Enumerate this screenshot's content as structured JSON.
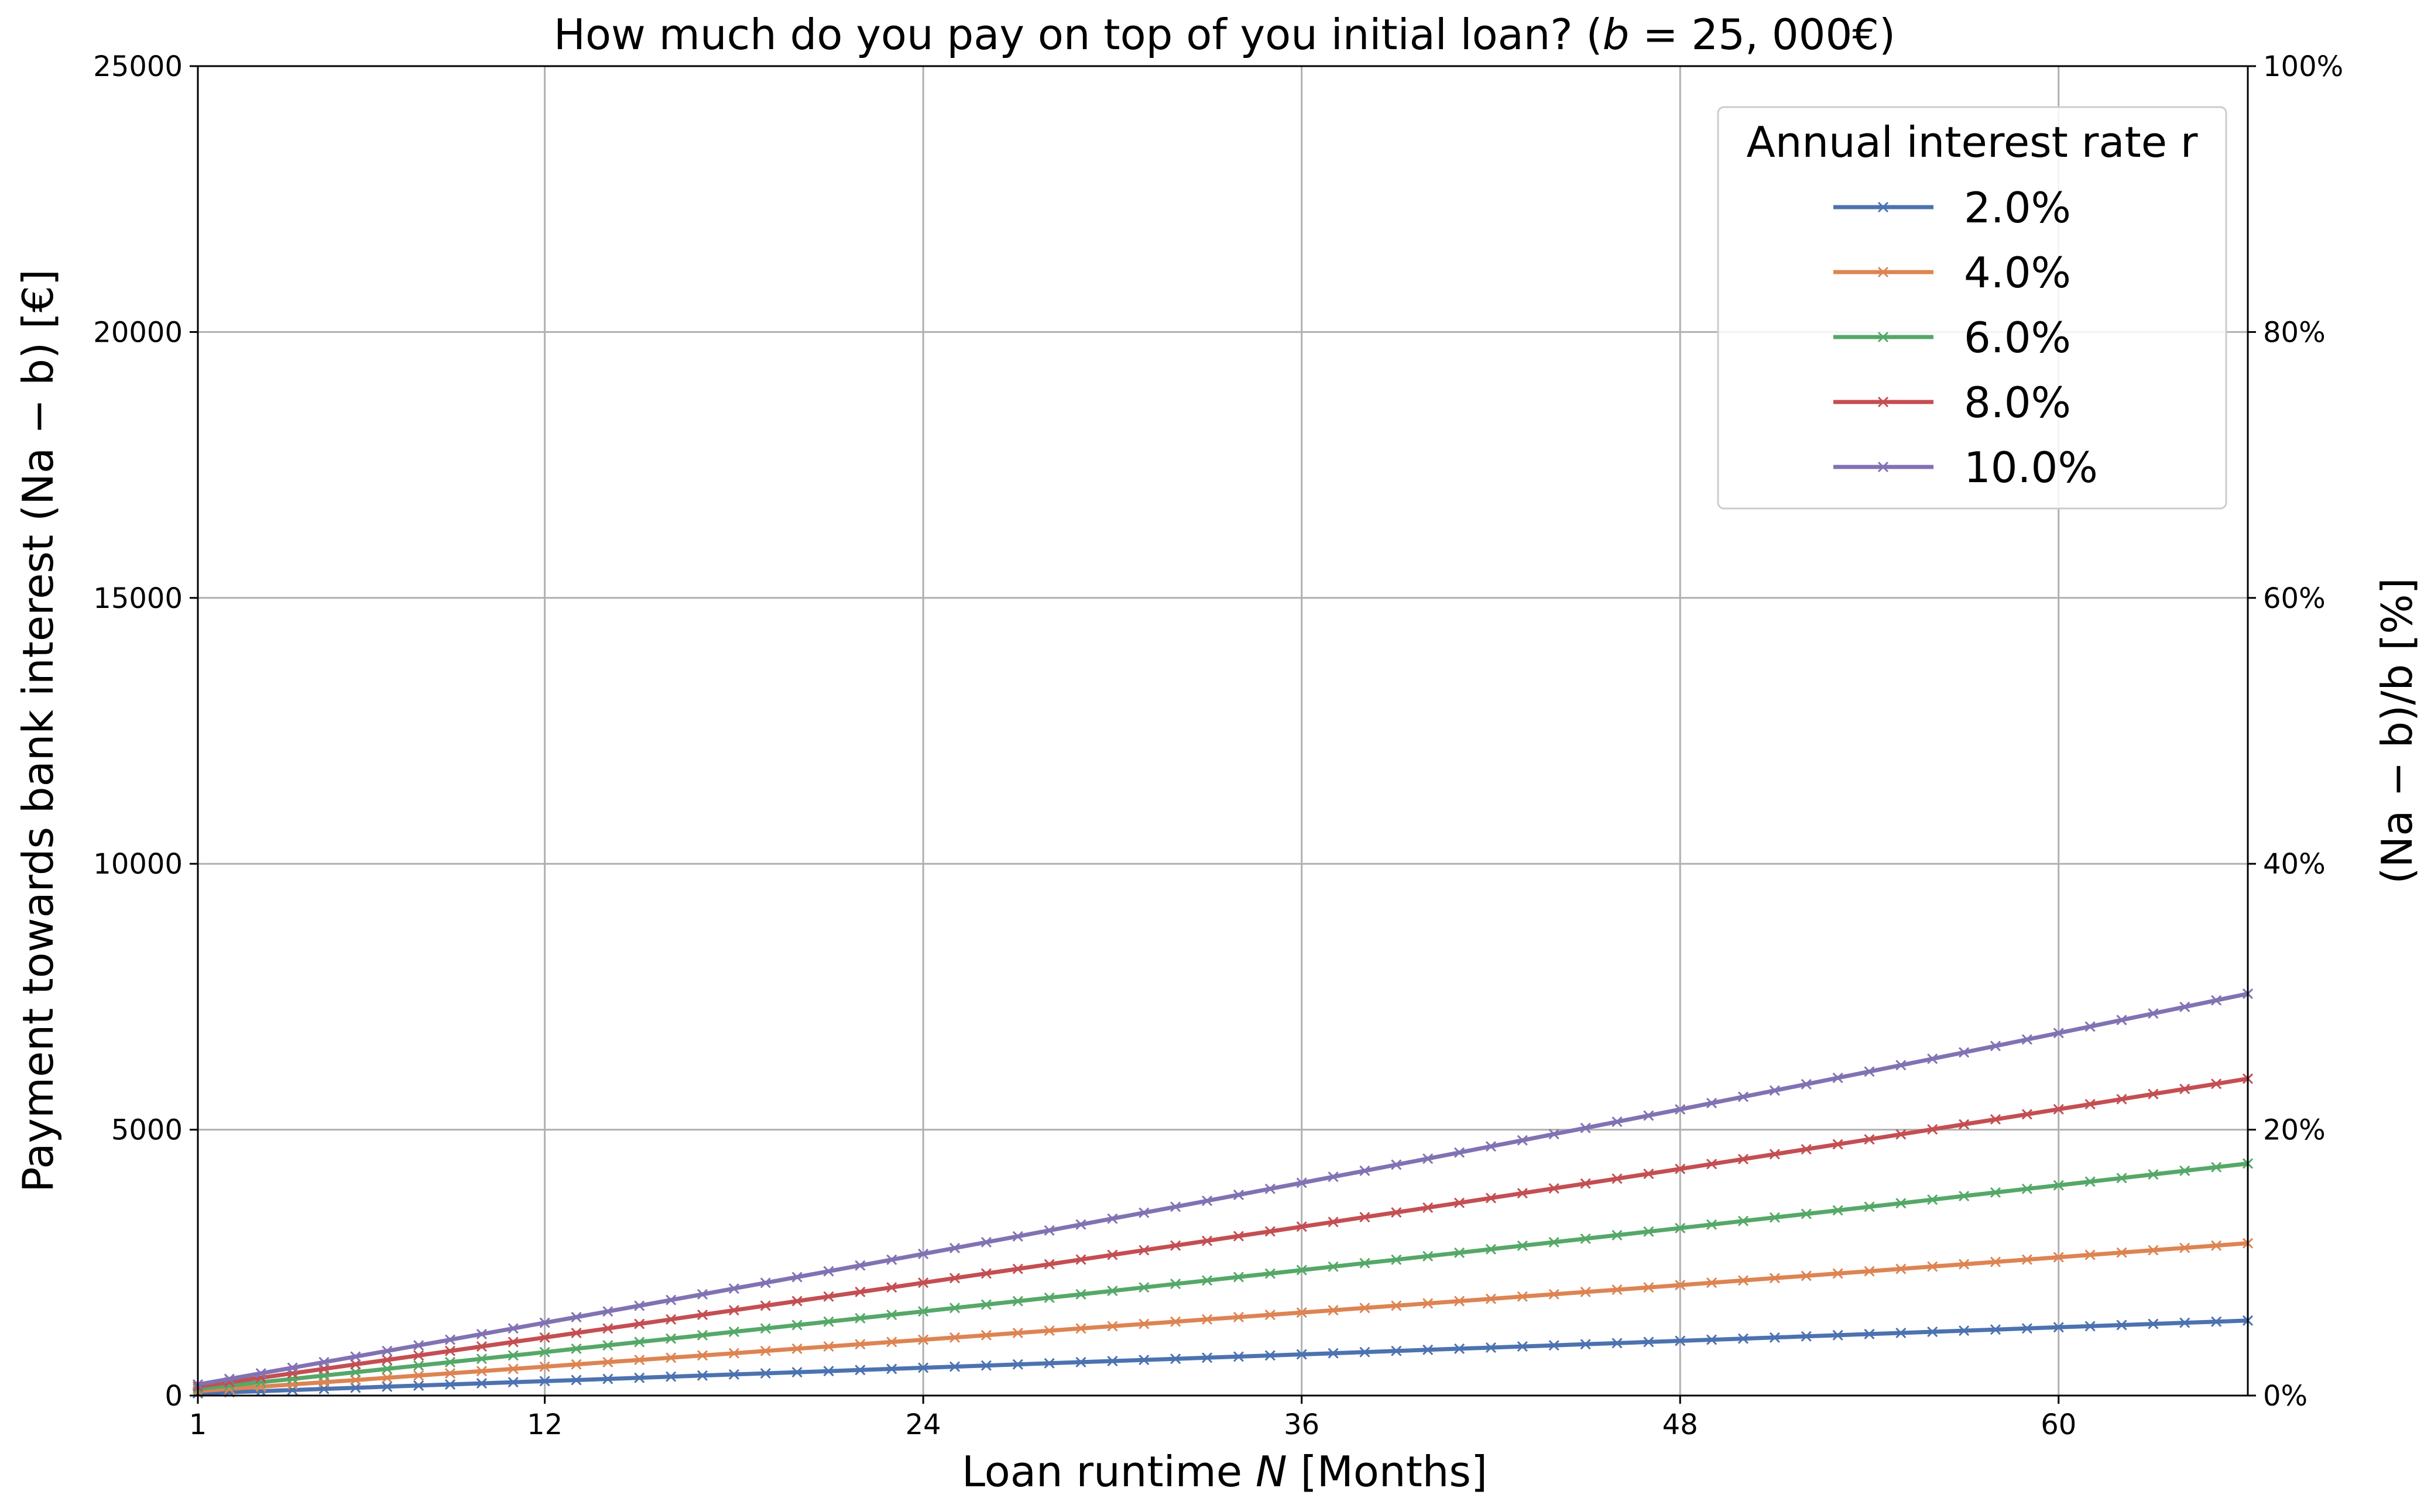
{
  "chart_data": {
    "type": "line",
    "title_prefix": "How much do you pay on top of you initial loan? (",
    "title_var": "b",
    "title_suffix": " = 25, 000€)",
    "xlabel_prefix": "Loan runtime ",
    "xlabel_var": "N",
    "xlabel_suffix": " [Months]",
    "ylabel": "Payment towards bank interest (Na − b) [€]",
    "y2label": "(Na − b)/b [%]",
    "xlim": [
      1,
      66
    ],
    "ylim": [
      0,
      25000
    ],
    "y2lim": [
      0,
      100
    ],
    "xticks": [
      1,
      12,
      24,
      36,
      48,
      60
    ],
    "yticks": [
      0,
      5000,
      10000,
      15000,
      20000,
      25000
    ],
    "y2ticks": [
      "0%",
      "20%",
      "40%",
      "60%",
      "80%",
      "100%"
    ],
    "grid": true,
    "legend_title": "Annual interest rate r",
    "legend_position": "top-right",
    "principal": 25000,
    "n_points": 66,
    "x": [
      1,
      2,
      3,
      4,
      5,
      6,
      7,
      8,
      9,
      10,
      11,
      12,
      13,
      14,
      15,
      16,
      17,
      18,
      19,
      20,
      21,
      22,
      23,
      24,
      25,
      26,
      27,
      28,
      29,
      30,
      31,
      32,
      33,
      34,
      35,
      36,
      37,
      38,
      39,
      40,
      41,
      42,
      43,
      44,
      45,
      46,
      47,
      48,
      49,
      50,
      51,
      52,
      53,
      54,
      55,
      56,
      57,
      58,
      59,
      60,
      61,
      62,
      63,
      64,
      65,
      66
    ],
    "series": [
      {
        "name": "2.0%",
        "rate": 0.02,
        "color": "#4c72b0",
        "values": [
          42,
          63,
          83,
          104,
          125,
          146,
          167,
          188,
          209,
          230,
          251,
          271,
          292,
          313,
          334,
          355,
          376,
          397,
          418,
          439,
          460,
          481,
          502,
          523,
          544,
          565,
          586,
          607,
          628,
          649,
          670,
          691,
          712,
          733,
          754,
          775,
          796,
          817,
          839,
          860,
          881,
          902,
          923,
          944,
          965,
          986,
          1008,
          1029,
          1050,
          1071,
          1092,
          1114,
          1135,
          1156,
          1177,
          1199,
          1220,
          1241,
          1262,
          1284,
          1305,
          1326,
          1347,
          1369,
          1390,
          1411
        ]
      },
      {
        "name": "4.0%",
        "rate": 0.04,
        "color": "#dd8452",
        "values": [
          83,
          125,
          167,
          209,
          251,
          292,
          334,
          376,
          418,
          460,
          502,
          544,
          586,
          628,
          670,
          712,
          754,
          796,
          839,
          881,
          923,
          965,
          1008,
          1050,
          1092,
          1135,
          1177,
          1220,
          1262,
          1305,
          1347,
          1390,
          1433,
          1475,
          1518,
          1561,
          1604,
          1647,
          1690,
          1733,
          1776,
          1819,
          1862,
          1905,
          1948,
          1991,
          2034,
          2078,
          2121,
          2164,
          2208,
          2251,
          2295,
          2338,
          2382,
          2426,
          2469,
          2513,
          2557,
          2601,
          2645,
          2689,
          2733,
          2777,
          2821,
          2865
        ]
      },
      {
        "name": "6.0%",
        "rate": 0.06,
        "color": "#55a868",
        "values": [
          125,
          188,
          251,
          313,
          376,
          439,
          502,
          565,
          628,
          691,
          754,
          817,
          881,
          944,
          1008,
          1071,
          1135,
          1199,
          1262,
          1326,
          1390,
          1454,
          1518,
          1582,
          1647,
          1711,
          1775,
          1840,
          1904,
          1969,
          2034,
          2099,
          2164,
          2229,
          2294,
          2359,
          2424,
          2490,
          2555,
          2621,
          2686,
          2752,
          2818,
          2884,
          2950,
          3016,
          3083,
          3149,
          3215,
          3282,
          3349,
          3416,
          3483,
          3550,
          3617,
          3684,
          3752,
          3819,
          3887,
          3954,
          4022,
          4090,
          4158,
          4227,
          4295,
          4363
        ]
      },
      {
        "name": "8.0%",
        "rate": 0.08,
        "color": "#c44e52",
        "values": [
          167,
          251,
          334,
          418,
          502,
          586,
          670,
          754,
          839,
          923,
          1008,
          1092,
          1177,
          1262,
          1347,
          1433,
          1518,
          1604,
          1690,
          1776,
          1862,
          1948,
          2034,
          2121,
          2208,
          2295,
          2382,
          2469,
          2557,
          2645,
          2733,
          2821,
          2909,
          2998,
          3087,
          3176,
          3265,
          3355,
          3444,
          3534,
          3624,
          3715,
          3805,
          3896,
          3987,
          4079,
          4170,
          4262,
          4354,
          4446,
          4539,
          4632,
          4725,
          4818,
          4912,
          5006,
          5100,
          5194,
          5289,
          5384,
          5479,
          5574,
          5670,
          5766,
          5862,
          5959
        ]
      },
      {
        "name": "10.0%",
        "rate": 0.1,
        "color": "#8172b3",
        "values": [
          208,
          313,
          418,
          523,
          628,
          733,
          839,
          944,
          1050,
          1156,
          1262,
          1369,
          1475,
          1582,
          1689,
          1797,
          1904,
          2012,
          2120,
          2228,
          2337,
          2446,
          2555,
          2664,
          2774,
          2884,
          2994,
          3105,
          3216,
          3327,
          3438,
          3550,
          3662,
          3774,
          3887,
          4000,
          4113,
          4227,
          4341,
          4455,
          4570,
          4685,
          4800,
          4916,
          5032,
          5149,
          5265,
          5382,
          5500,
          5618,
          5736,
          5855,
          5974,
          6093,
          6213,
          6333,
          6453,
          6574,
          6696,
          6817,
          6939,
          7062,
          7185,
          7308,
          7432,
          7556
        ]
      }
    ]
  }
}
